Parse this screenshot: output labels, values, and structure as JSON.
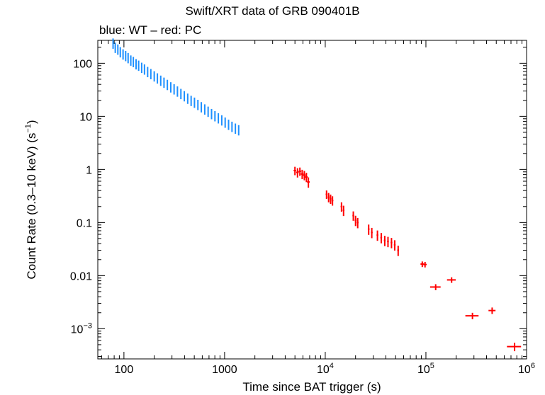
{
  "chart_data": {
    "type": "scatter",
    "title": "Swift/XRT data of GRB 090401B",
    "subtitle": "blue: WT – red: PC",
    "xlabel": "Time since BAT trigger (s)",
    "ylabel_main": "Count Rate (0.3–10 keV) (s",
    "ylabel_sup": "−1",
    "ylabel_end": ")",
    "x_scale": "log",
    "y_scale": "log",
    "xlim": [
      55,
      1000000
    ],
    "ylim": [
      0.00027,
      270
    ],
    "x_ticks": [
      {
        "value": 100,
        "base": "100",
        "sup": ""
      },
      {
        "value": 1000,
        "base": "1000",
        "sup": ""
      },
      {
        "value": 10000,
        "base": "10",
        "sup": "4"
      },
      {
        "value": 100000,
        "base": "10",
        "sup": "5"
      },
      {
        "value": 1000000,
        "base": "10",
        "sup": "6"
      }
    ],
    "y_ticks": [
      {
        "value": 100,
        "base": "100",
        "sup": ""
      },
      {
        "value": 10,
        "base": "10",
        "sup": ""
      },
      {
        "value": 1,
        "base": "1",
        "sup": ""
      },
      {
        "value": 0.1,
        "base": "0.1",
        "sup": ""
      },
      {
        "value": 0.01,
        "base": "0.01",
        "sup": ""
      },
      {
        "value": 0.001,
        "base": "10",
        "sup": "−3"
      }
    ],
    "series": [
      {
        "name": "WT",
        "color": "#1e90ff",
        "points": [
          [
            78,
            240
          ],
          [
            82,
            200
          ],
          [
            87,
            185
          ],
          [
            92,
            165
          ],
          [
            98,
            150
          ],
          [
            104,
            140
          ],
          [
            110,
            128
          ],
          [
            117,
            115
          ],
          [
            124,
            108
          ],
          [
            132,
            98
          ],
          [
            140,
            92
          ],
          [
            150,
            84
          ],
          [
            160,
            78
          ],
          [
            172,
            70
          ],
          [
            185,
            64
          ],
          [
            200,
            58
          ],
          [
            215,
            53
          ],
          [
            232,
            48
          ],
          [
            250,
            44
          ],
          [
            270,
            40
          ],
          [
            292,
            36
          ],
          [
            315,
            33
          ],
          [
            340,
            30
          ],
          [
            368,
            27
          ],
          [
            398,
            24.5
          ],
          [
            430,
            22
          ],
          [
            465,
            20
          ],
          [
            502,
            18.5
          ],
          [
            543,
            16.8
          ],
          [
            587,
            15.2
          ],
          [
            635,
            13.8
          ],
          [
            686,
            12.5
          ],
          [
            742,
            11.3
          ],
          [
            802,
            10.3
          ],
          [
            867,
            9.4
          ],
          [
            937,
            8.6
          ],
          [
            1013,
            7.8
          ],
          [
            1095,
            7.1
          ],
          [
            1184,
            6.5
          ],
          [
            1280,
            6.0
          ],
          [
            1380,
            5.6
          ]
        ],
        "y_err_frac": 0.22
      },
      {
        "name": "PC",
        "color": "#ff0000",
        "points": [
          [
            5000,
            0.95
          ],
          [
            5300,
            0.88
          ],
          [
            5600,
            0.92
          ],
          [
            5900,
            0.82
          ],
          [
            6200,
            0.78
          ],
          [
            6500,
            0.72
          ],
          [
            6800,
            0.58
          ],
          [
            10300,
            0.34
          ],
          [
            10800,
            0.3
          ],
          [
            11300,
            0.28
          ],
          [
            11800,
            0.26
          ],
          [
            14500,
            0.2
          ],
          [
            15200,
            0.17
          ],
          [
            19000,
            0.135
          ],
          [
            20000,
            0.11
          ],
          [
            21000,
            0.1
          ],
          [
            27000,
            0.075
          ],
          [
            29000,
            0.065
          ],
          [
            33000,
            0.058
          ],
          [
            36000,
            0.052
          ],
          [
            39000,
            0.046
          ],
          [
            42000,
            0.044
          ],
          [
            45500,
            0.042
          ],
          [
            49000,
            0.038
          ],
          [
            53000,
            0.03
          ],
          [
            92000,
            0.0165
          ],
          [
            98000,
            0.0162
          ],
          [
            125000,
            0.0061
          ],
          [
            180000,
            0.0083
          ],
          [
            290000,
            0.00175
          ],
          [
            455000,
            0.0022
          ],
          [
            760000,
            0.00046
          ]
        ],
        "x_err_frac": [
          0.03,
          0.03,
          0.03,
          0.03,
          0.03,
          0.03,
          0.03,
          0.02,
          0.02,
          0.02,
          0.02,
          0.02,
          0.02,
          0.02,
          0.02,
          0.02,
          0.02,
          0.02,
          0.02,
          0.02,
          0.02,
          0.02,
          0.02,
          0.02,
          0.02,
          0.04,
          0.04,
          0.12,
          0.1,
          0.15,
          0.08,
          0.16
        ],
        "y_err_frac": [
          0.18,
          0.2,
          0.18,
          0.2,
          0.2,
          0.2,
          0.22,
          0.18,
          0.2,
          0.2,
          0.2,
          0.2,
          0.22,
          0.2,
          0.22,
          0.22,
          0.22,
          0.22,
          0.22,
          0.22,
          0.22,
          0.22,
          0.22,
          0.22,
          0.22,
          0.12,
          0.12,
          0.13,
          0.12,
          0.14,
          0.14,
          0.18
        ]
      }
    ]
  }
}
